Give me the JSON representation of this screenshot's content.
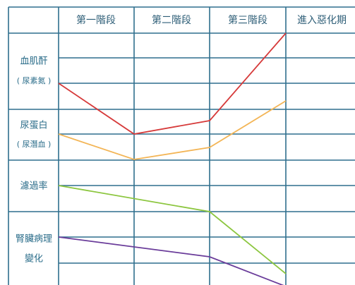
{
  "header": {
    "columns": [
      "第一階段",
      "第二階段",
      "第三階段",
      "進入惡化期"
    ]
  },
  "rows": [
    {
      "label": "血肌酐",
      "sublabel": "( 尿素氮 )"
    },
    {
      "label": "尿蛋白",
      "sublabel": "( 尿潛血 )"
    },
    {
      "label": "濾過率"
    },
    {
      "label": "腎臟病理",
      "sublabel": "變化"
    }
  ]
}
